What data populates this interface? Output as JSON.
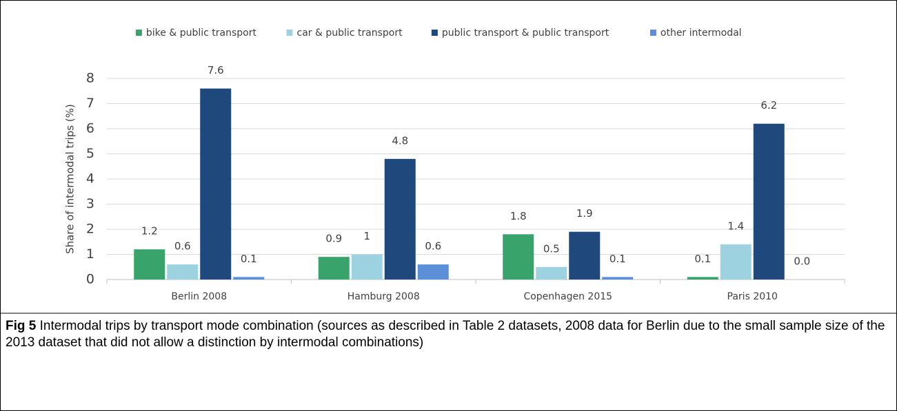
{
  "chart_data": {
    "type": "bar",
    "categories": [
      "Berlin 2008",
      "Hamburg 2008",
      "Copenhagen 2015",
      "Paris 2010"
    ],
    "series": [
      {
        "name": "bike & public transport",
        "color": "#38a36a",
        "values": [
          1.2,
          0.9,
          1.8,
          0.1
        ]
      },
      {
        "name": "car & public transport",
        "color": "#9dd3e1",
        "values": [
          0.6,
          1,
          0.5,
          1.4
        ]
      },
      {
        "name": "public transport & public transport",
        "color": "#1f497d",
        "values": [
          7.6,
          4.8,
          1.9,
          6.2
        ]
      },
      {
        "name": "other intermodal",
        "color": "#5b8fd8",
        "values": [
          0.1,
          0.6,
          0.1,
          0
        ],
        "value_labels": [
          "0.1",
          "0.6",
          "0.1",
          "0.0"
        ]
      }
    ],
    "y_label": "Share of intermodal trips (%)",
    "ylim": [
      0,
      8
    ],
    "yticks": [
      0,
      1,
      2,
      3,
      4,
      5,
      6,
      7,
      8
    ],
    "grid": true,
    "legend": "top",
    "caption_label": "Fig 5",
    "caption": "Intermodal trips by transport mode combination (sources as described in Table 2 datasets, 2008 data for Berlin due to the small sample size of the 2013 dataset that did not allow a distinction by intermodal combinations)"
  }
}
